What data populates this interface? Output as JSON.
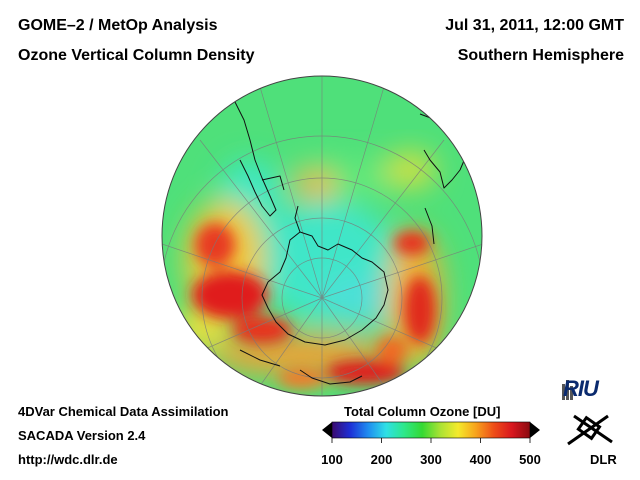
{
  "header": {
    "title": "GOME–2 / MetOp Analysis",
    "subtitle": "Ozone Vertical Column Density",
    "date": "Jul 31, 2011, 12:00 GMT",
    "hemisphere": "Southern Hemisphere"
  },
  "footer": {
    "line1": "4DVar Chemical Data Assimilation",
    "line2": "SACADA Version 2.4",
    "line3": "http://wdc.dlr.de"
  },
  "colorbar": {
    "title": "Total Column Ozone [DU]",
    "min": 100,
    "max": 500,
    "ticks": [
      "100",
      "200",
      "300",
      "400",
      "500"
    ],
    "colors": [
      "#000000",
      "#3b0a6e",
      "#1e2fd6",
      "#1f8cf0",
      "#2fe0e6",
      "#2ee88a",
      "#34d934",
      "#a8e234",
      "#f4ea2c",
      "#f7a21c",
      "#ee4d18",
      "#d8161e",
      "#8a0a10",
      "#000000"
    ]
  },
  "logos": {
    "riu": "RIU",
    "dlr": "DLR"
  }
}
